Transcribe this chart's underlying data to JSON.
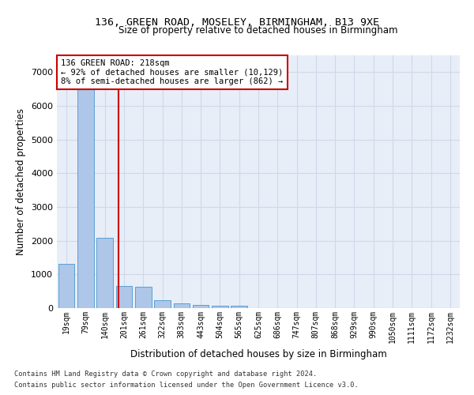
{
  "title1": "136, GREEN ROAD, MOSELEY, BIRMINGHAM, B13 9XE",
  "title2": "Size of property relative to detached houses in Birmingham",
  "xlabel": "Distribution of detached houses by size in Birmingham",
  "ylabel": "Number of detached properties",
  "footnote1": "Contains HM Land Registry data © Crown copyright and database right 2024.",
  "footnote2": "Contains public sector information licensed under the Open Government Licence v3.0.",
  "annotation_line1": "136 GREEN ROAD: 218sqm",
  "annotation_line2": "← 92% of detached houses are smaller (10,129)",
  "annotation_line3": "8% of semi-detached houses are larger (862) →",
  "bar_categories": [
    "19sqm",
    "79sqm",
    "140sqm",
    "201sqm",
    "261sqm",
    "322sqm",
    "383sqm",
    "443sqm",
    "504sqm",
    "565sqm",
    "625sqm",
    "686sqm",
    "747sqm",
    "807sqm",
    "868sqm",
    "929sqm",
    "990sqm",
    "1050sqm",
    "1111sqm",
    "1172sqm",
    "1232sqm"
  ],
  "bar_values": [
    1310,
    6550,
    2080,
    650,
    630,
    240,
    130,
    100,
    60,
    60,
    0,
    0,
    0,
    0,
    0,
    0,
    0,
    0,
    0,
    0,
    0
  ],
  "bar_color": "#aec6e8",
  "bar_edge_color": "#5a9fd4",
  "vline_color": "#cc0000",
  "grid_color": "#d0d8e8",
  "background_color": "#e8eef8",
  "annotation_box_color": "#cc0000",
  "ylim": [
    0,
    7500
  ],
  "yticks": [
    0,
    1000,
    2000,
    3000,
    4000,
    5000,
    6000,
    7000
  ],
  "vline_pos": 2.72
}
